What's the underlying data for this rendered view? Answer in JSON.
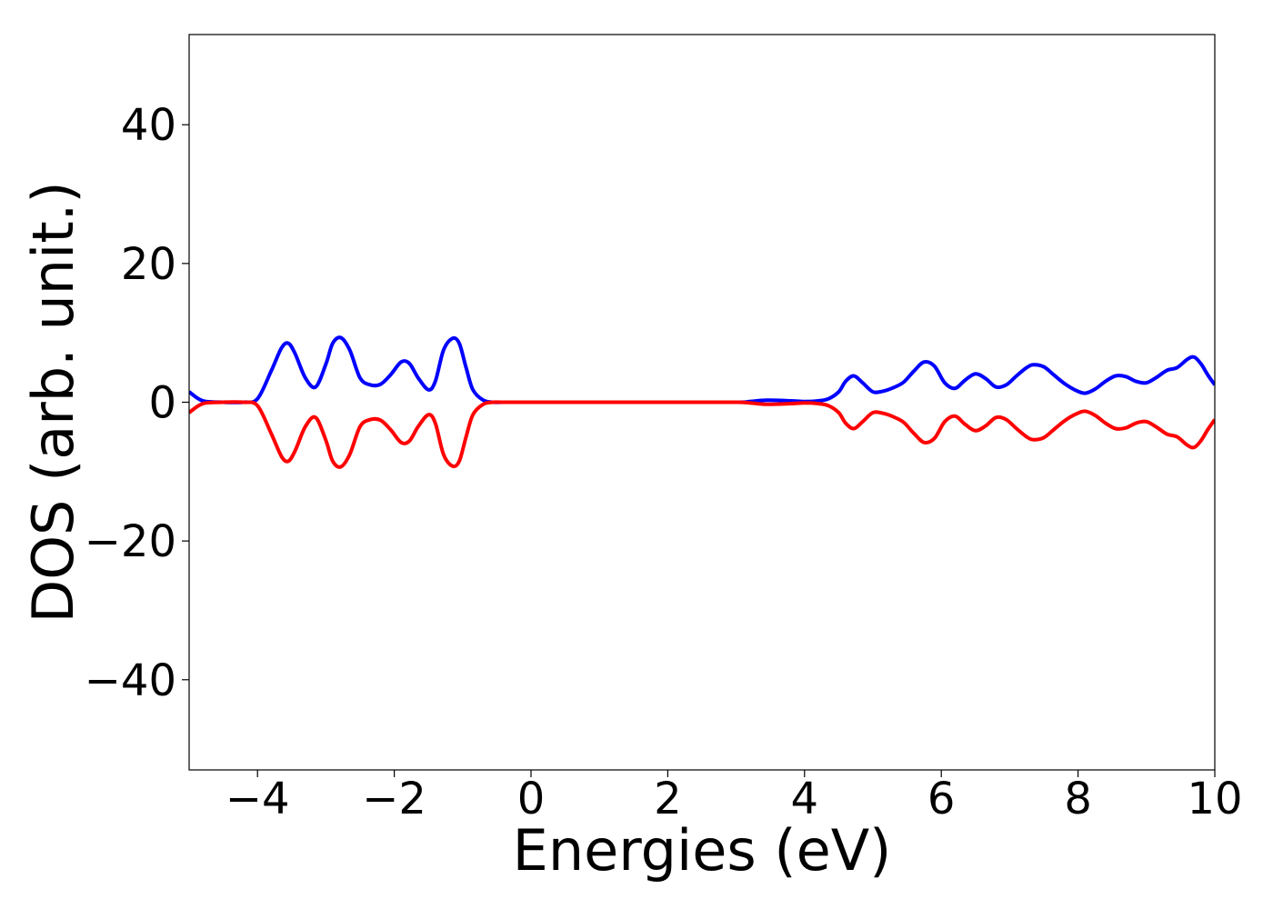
{
  "chart_data": {
    "type": "line",
    "title": "",
    "xlabel": "Energies (eV)",
    "ylabel": "DOS (arb. unit.)",
    "xlim": [
      -5,
      10
    ],
    "ylim": [
      -53,
      53
    ],
    "xticks": [
      -4,
      -2,
      0,
      2,
      4,
      6,
      8,
      10
    ],
    "yticks": [
      -40,
      -20,
      0,
      20,
      40
    ],
    "grid": false,
    "legend": "none",
    "series": [
      {
        "color": "#0000ff",
        "x": [
          -5.0,
          -4.8,
          -4.5,
          -4.2,
          -4.0,
          -3.8,
          -3.65,
          -3.55,
          -3.45,
          -3.3,
          -3.15,
          -3.0,
          -2.9,
          -2.78,
          -2.65,
          -2.5,
          -2.35,
          -2.2,
          -2.05,
          -1.9,
          -1.78,
          -1.65,
          -1.5,
          -1.4,
          -1.28,
          -1.15,
          -1.05,
          -0.95,
          -0.85,
          -0.7,
          -0.55,
          -0.4,
          0.0,
          1.0,
          2.0,
          3.0,
          3.2,
          3.45,
          3.8,
          4.0,
          4.2,
          4.35,
          4.5,
          4.6,
          4.72,
          4.85,
          5.0,
          5.15,
          5.3,
          5.45,
          5.6,
          5.75,
          5.9,
          6.05,
          6.2,
          6.35,
          6.5,
          6.65,
          6.8,
          6.95,
          7.1,
          7.25,
          7.35,
          7.5,
          7.65,
          7.8,
          7.95,
          8.1,
          8.25,
          8.4,
          8.55,
          8.7,
          8.85,
          9.0,
          9.15,
          9.3,
          9.45,
          9.6,
          9.7,
          9.8,
          9.9,
          10.0
        ],
        "y": [
          1.5,
          0.2,
          0.0,
          0.0,
          0.5,
          4.5,
          7.8,
          8.5,
          7.0,
          3.5,
          2.2,
          5.5,
          8.5,
          9.3,
          7.5,
          3.5,
          2.5,
          2.6,
          4.0,
          5.8,
          5.6,
          3.5,
          1.8,
          3.0,
          7.5,
          9.2,
          8.5,
          5.0,
          1.8,
          0.3,
          0.0,
          0.0,
          0.0,
          0.0,
          0.0,
          0.0,
          0.1,
          0.3,
          0.2,
          0.1,
          0.2,
          0.5,
          1.5,
          3.0,
          3.8,
          2.8,
          1.5,
          1.6,
          2.1,
          2.9,
          4.5,
          5.8,
          5.2,
          2.8,
          2.0,
          3.2,
          4.1,
          3.4,
          2.2,
          2.5,
          3.8,
          5.0,
          5.4,
          5.1,
          3.9,
          2.7,
          1.8,
          1.3,
          1.9,
          3.0,
          3.8,
          3.7,
          3.0,
          2.8,
          3.6,
          4.6,
          5.0,
          6.2,
          6.5,
          5.5,
          3.9,
          2.5
        ]
      },
      {
        "color": "#ff0000",
        "x": [
          -5.0,
          -4.8,
          -4.5,
          -4.2,
          -4.0,
          -3.8,
          -3.65,
          -3.55,
          -3.45,
          -3.3,
          -3.15,
          -3.0,
          -2.9,
          -2.78,
          -2.65,
          -2.5,
          -2.35,
          -2.2,
          -2.05,
          -1.9,
          -1.78,
          -1.65,
          -1.5,
          -1.4,
          -1.28,
          -1.15,
          -1.05,
          -0.95,
          -0.85,
          -0.7,
          -0.55,
          -0.4,
          0.0,
          1.0,
          2.0,
          3.0,
          3.2,
          3.45,
          3.8,
          4.0,
          4.2,
          4.35,
          4.5,
          4.6,
          4.72,
          4.85,
          5.0,
          5.15,
          5.3,
          5.45,
          5.6,
          5.75,
          5.9,
          6.05,
          6.2,
          6.35,
          6.5,
          6.65,
          6.8,
          6.95,
          7.1,
          7.25,
          7.35,
          7.5,
          7.65,
          7.8,
          7.95,
          8.1,
          8.25,
          8.4,
          8.55,
          8.7,
          8.85,
          9.0,
          9.15,
          9.3,
          9.45,
          9.6,
          9.7,
          9.8,
          9.9,
          10.0
        ],
        "y": [
          -1.5,
          -0.2,
          0.0,
          0.0,
          -0.5,
          -4.5,
          -7.8,
          -8.5,
          -7.0,
          -3.5,
          -2.2,
          -5.5,
          -8.5,
          -9.3,
          -7.5,
          -3.5,
          -2.5,
          -2.6,
          -4.0,
          -5.8,
          -5.6,
          -3.5,
          -1.8,
          -3.0,
          -7.5,
          -9.2,
          -8.5,
          -5.0,
          -1.8,
          -0.3,
          0.0,
          0.0,
          0.0,
          0.0,
          0.0,
          0.0,
          -0.1,
          -0.3,
          -0.2,
          -0.1,
          -0.2,
          -0.5,
          -1.5,
          -3.0,
          -3.8,
          -2.8,
          -1.5,
          -1.6,
          -2.1,
          -2.9,
          -4.5,
          -5.8,
          -5.2,
          -2.8,
          -2.0,
          -3.2,
          -4.1,
          -3.4,
          -2.2,
          -2.5,
          -3.8,
          -5.0,
          -5.4,
          -5.1,
          -3.9,
          -2.7,
          -1.8,
          -1.3,
          -1.9,
          -3.0,
          -3.8,
          -3.7,
          -3.0,
          -2.8,
          -3.6,
          -4.6,
          -5.0,
          -6.2,
          -6.5,
          -5.5,
          -3.9,
          -2.5
        ]
      }
    ]
  }
}
